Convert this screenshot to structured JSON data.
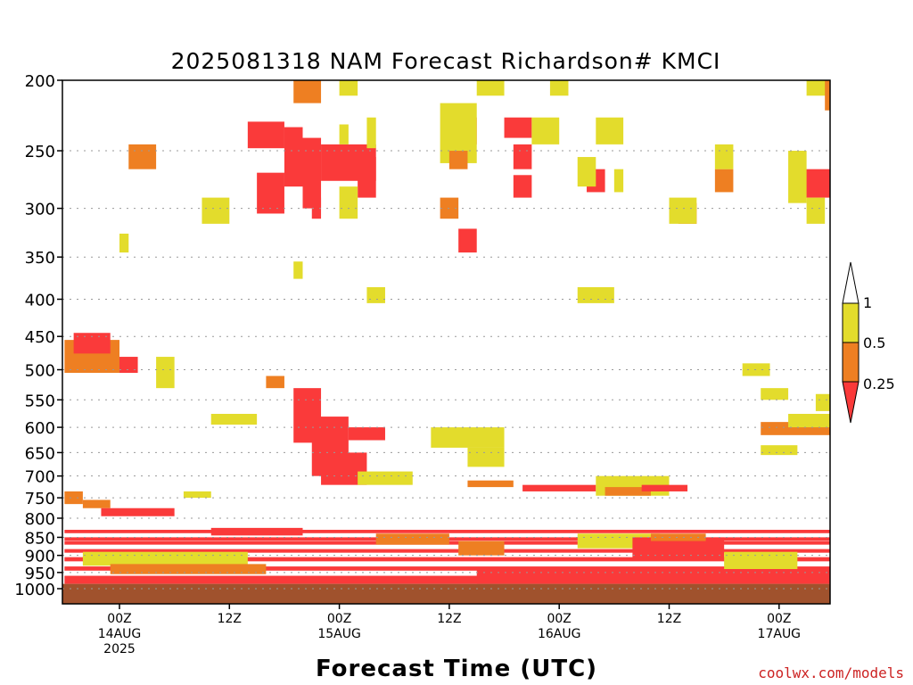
{
  "chart_data": {
    "type": "heatmap",
    "title": "2025081318 NAM Forecast Richardson# KMCI",
    "xlabel": "Forecast Time (UTC)",
    "ylabel": "",
    "credit": "coolwx.com/models",
    "y_axis": {
      "scale": "log",
      "range": [
        1000,
        200
      ],
      "ticks": [
        200,
        250,
        300,
        350,
        400,
        450,
        500,
        550,
        600,
        650,
        700,
        750,
        800,
        850,
        900,
        950,
        1000
      ]
    },
    "x_axis": {
      "range_hours": [
        0,
        84
      ],
      "ticks": [
        {
          "line1": "00Z",
          "line2": "14AUG",
          "line3": "2025"
        },
        {
          "line1": "12Z",
          "line2": "",
          "line3": ""
        },
        {
          "line1": "00Z",
          "line2": "15AUG",
          "line3": ""
        },
        {
          "line1": "12Z",
          "line2": "",
          "line3": ""
        },
        {
          "line1": "00Z",
          "line2": "16AUG",
          "line3": ""
        },
        {
          "line1": "12Z",
          "line2": "",
          "line3": ""
        },
        {
          "line1": "00Z",
          "line2": "17AUG",
          "line3": ""
        }
      ]
    },
    "legend": {
      "placement": "right",
      "labels": [
        "1",
        "0.5",
        "0.25"
      ],
      "bins": [
        {
          "range": "0.5-1",
          "color": "#e3dc2c"
        },
        {
          "range": "0.25-0.5",
          "color": "#ee7f22"
        },
        {
          "range": "<0.25",
          "color": "#fa3a3a"
        }
      ]
    },
    "ground_color": "#a0522d",
    "colors": {
      "yellow": "#e3dc2c",
      "orange": "#ee7f22",
      "red": "#fa3a3a"
    },
    "regions": [
      {
        "t": [
          25,
          28
        ],
        "p": [
          200,
          215
        ],
        "v": "orange"
      },
      {
        "t": [
          20,
          24
        ],
        "p": [
          228,
          248
        ],
        "v": "red"
      },
      {
        "t": [
          24,
          26
        ],
        "p": [
          232,
          280
        ],
        "v": "red"
      },
      {
        "t": [
          26,
          28
        ],
        "p": [
          240,
          300
        ],
        "v": "red"
      },
      {
        "t": [
          21,
          24
        ],
        "p": [
          268,
          305
        ],
        "v": "red"
      },
      {
        "t": [
          27,
          28
        ],
        "p": [
          290,
          310
        ],
        "v": "red"
      },
      {
        "t": [
          28,
          34
        ],
        "p": [
          245,
          275
        ],
        "v": "red"
      },
      {
        "t": [
          32,
          34
        ],
        "p": [
          255,
          290
        ],
        "v": "red"
      },
      {
        "t": [
          30,
          32
        ],
        "p": [
          280,
          310
        ],
        "v": "yellow"
      },
      {
        "t": [
          30,
          31
        ],
        "p": [
          230,
          245
        ],
        "v": "yellow"
      },
      {
        "t": [
          33,
          34
        ],
        "p": [
          225,
          248
        ],
        "v": "yellow"
      },
      {
        "t": [
          30,
          32
        ],
        "p": [
          200,
          210
        ],
        "v": "yellow"
      },
      {
        "t": [
          15,
          18
        ],
        "p": [
          290,
          315
        ],
        "v": "yellow"
      },
      {
        "t": [
          7,
          10
        ],
        "p": [
          245,
          265
        ],
        "v": "orange"
      },
      {
        "t": [
          6,
          7
        ],
        "p": [
          325,
          345
        ],
        "v": "yellow"
      },
      {
        "t": [
          25,
          26
        ],
        "p": [
          355,
          375
        ],
        "v": "yellow"
      },
      {
        "t": [
          33,
          35
        ],
        "p": [
          385,
          405
        ],
        "v": "yellow"
      },
      {
        "t": [
          42,
          45
        ],
        "p": [
          225,
          245
        ],
        "v": "red"
      },
      {
        "t": [
          41,
          45
        ],
        "p": [
          215,
          260
        ],
        "v": "yellow"
      },
      {
        "t": [
          42,
          44
        ],
        "p": [
          250,
          265
        ],
        "v": "orange"
      },
      {
        "t": [
          41,
          43
        ],
        "p": [
          290,
          310
        ],
        "v": "orange"
      },
      {
        "t": [
          43,
          45
        ],
        "p": [
          320,
          345
        ],
        "v": "red"
      },
      {
        "t": [
          45,
          48
        ],
        "p": [
          200,
          210
        ],
        "v": "yellow"
      },
      {
        "t": [
          48,
          51
        ],
        "p": [
          225,
          240
        ],
        "v": "red"
      },
      {
        "t": [
          49,
          51
        ],
        "p": [
          245,
          265
        ],
        "v": "red"
      },
      {
        "t": [
          49,
          51
        ],
        "p": [
          270,
          290
        ],
        "v": "red"
      },
      {
        "t": [
          51,
          54
        ],
        "p": [
          225,
          245
        ],
        "v": "yellow"
      },
      {
        "t": [
          53,
          55
        ],
        "p": [
          200,
          210
        ],
        "v": "yellow"
      },
      {
        "t": [
          56,
          60
        ],
        "p": [
          385,
          405
        ],
        "v": "yellow"
      },
      {
        "t": [
          57,
          59
        ],
        "p": [
          265,
          285
        ],
        "v": "red"
      },
      {
        "t": [
          56,
          58
        ],
        "p": [
          255,
          280
        ],
        "v": "yellow"
      },
      {
        "t": [
          58,
          61
        ],
        "p": [
          225,
          245
        ],
        "v": "yellow"
      },
      {
        "t": [
          60,
          61
        ],
        "p": [
          265,
          285
        ],
        "v": "yellow"
      },
      {
        "t": [
          67,
          69
        ],
        "p": [
          295,
          315
        ],
        "v": "red"
      },
      {
        "t": [
          66,
          69
        ],
        "p": [
          290,
          315
        ],
        "v": "yellow"
      },
      {
        "t": [
          71,
          73
        ],
        "p": [
          265,
          285
        ],
        "v": "orange"
      },
      {
        "t": [
          71,
          73
        ],
        "p": [
          245,
          265
        ],
        "v": "yellow"
      },
      {
        "t": [
          80,
          84
        ],
        "p": [
          265,
          290
        ],
        "v": "red"
      },
      {
        "t": [
          79,
          81
        ],
        "p": [
          250,
          295
        ],
        "v": "yellow"
      },
      {
        "t": [
          81,
          84
        ],
        "p": [
          200,
          210
        ],
        "v": "yellow"
      },
      {
        "t": [
          81,
          83
        ],
        "p": [
          290,
          315
        ],
        "v": "yellow"
      },
      {
        "t": [
          83,
          84
        ],
        "p": [
          200,
          220
        ],
        "v": "orange"
      },
      {
        "t": [
          0,
          6
        ],
        "p": [
          455,
          505
        ],
        "v": "orange"
      },
      {
        "t": [
          1,
          5
        ],
        "p": [
          445,
          475
        ],
        "v": "red"
      },
      {
        "t": [
          6,
          8
        ],
        "p": [
          480,
          505
        ],
        "v": "red"
      },
      {
        "t": [
          10,
          12
        ],
        "p": [
          480,
          530
        ],
        "v": "yellow"
      },
      {
        "t": [
          22,
          24
        ],
        "p": [
          510,
          530
        ],
        "v": "orange"
      },
      {
        "t": [
          25,
          28
        ],
        "p": [
          530,
          630
        ],
        "v": "red"
      },
      {
        "t": [
          27,
          31
        ],
        "p": [
          580,
          700
        ],
        "v": "red"
      },
      {
        "t": [
          28,
          33
        ],
        "p": [
          650,
          720
        ],
        "v": "red"
      },
      {
        "t": [
          31,
          35
        ],
        "p": [
          600,
          625
        ],
        "v": "red"
      },
      {
        "t": [
          32,
          38
        ],
        "p": [
          690,
          720
        ],
        "v": "yellow"
      },
      {
        "t": [
          16,
          21
        ],
        "p": [
          575,
          595
        ],
        "v": "yellow"
      },
      {
        "t": [
          40,
          48
        ],
        "p": [
          600,
          640
        ],
        "v": "yellow"
      },
      {
        "t": [
          44,
          48
        ],
        "p": [
          640,
          680
        ],
        "v": "yellow"
      },
      {
        "t": [
          44,
          49
        ],
        "p": [
          710,
          725
        ],
        "v": "orange"
      },
      {
        "t": [
          50,
          58
        ],
        "p": [
          720,
          735
        ],
        "v": "red"
      },
      {
        "t": [
          58,
          66
        ],
        "p": [
          700,
          745
        ],
        "v": "yellow"
      },
      {
        "t": [
          59,
          64
        ],
        "p": [
          725,
          745
        ],
        "v": "orange"
      },
      {
        "t": [
          63,
          68
        ],
        "p": [
          720,
          735
        ],
        "v": "red"
      },
      {
        "t": [
          76,
          84
        ],
        "p": [
          590,
          615
        ],
        "v": "orange"
      },
      {
        "t": [
          79,
          84
        ],
        "p": [
          575,
          600
        ],
        "v": "yellow"
      },
      {
        "t": [
          76,
          79
        ],
        "p": [
          530,
          550
        ],
        "v": "yellow"
      },
      {
        "t": [
          74,
          77
        ],
        "p": [
          490,
          510
        ],
        "v": "yellow"
      },
      {
        "t": [
          82,
          84
        ],
        "p": [
          540,
          570
        ],
        "v": "yellow"
      },
      {
        "t": [
          76,
          80
        ],
        "p": [
          635,
          655
        ],
        "v": "yellow"
      },
      {
        "t": [
          0,
          2
        ],
        "p": [
          735,
          765
        ],
        "v": "orange"
      },
      {
        "t": [
          2,
          5
        ],
        "p": [
          755,
          775
        ],
        "v": "orange"
      },
      {
        "t": [
          4,
          12
        ],
        "p": [
          775,
          795
        ],
        "v": "red"
      },
      {
        "t": [
          13,
          16
        ],
        "p": [
          735,
          750
        ],
        "v": "yellow"
      },
      {
        "t": [
          0,
          84
        ],
        "p": [
          830,
          860
        ],
        "v": "red",
        "stripes": true
      },
      {
        "t": [
          0,
          84
        ],
        "p": [
          860,
          905
        ],
        "v": "red",
        "stripes": true
      },
      {
        "t": [
          0,
          84
        ],
        "p": [
          905,
          960
        ],
        "v": "red",
        "stripes": true
      },
      {
        "t": [
          0,
          84
        ],
        "p": [
          960,
          985
        ],
        "v": "red"
      },
      {
        "t": [
          2,
          20
        ],
        "p": [
          890,
          930
        ],
        "v": "yellow"
      },
      {
        "t": [
          5,
          22
        ],
        "p": [
          925,
          955
        ],
        "v": "orange"
      },
      {
        "t": [
          16,
          26
        ],
        "p": [
          825,
          845
        ],
        "v": "red"
      },
      {
        "t": [
          34,
          42
        ],
        "p": [
          840,
          870
        ],
        "v": "orange"
      },
      {
        "t": [
          43,
          48
        ],
        "p": [
          860,
          900
        ],
        "v": "orange"
      },
      {
        "t": [
          56,
          65
        ],
        "p": [
          840,
          880
        ],
        "v": "yellow"
      },
      {
        "t": [
          62,
          72
        ],
        "p": [
          850,
          915
        ],
        "v": "red"
      },
      {
        "t": [
          64,
          70
        ],
        "p": [
          840,
          860
        ],
        "v": "orange"
      },
      {
        "t": [
          72,
          80
        ],
        "p": [
          890,
          940
        ],
        "v": "yellow"
      },
      {
        "t": [
          45,
          84
        ],
        "p": [
          940,
          985
        ],
        "v": "red"
      }
    ]
  }
}
